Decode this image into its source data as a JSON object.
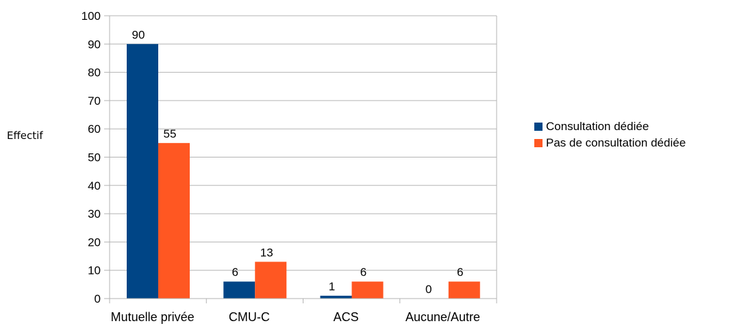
{
  "chart_data": {
    "type": "bar",
    "title": "",
    "xlabel": "",
    "ylabel": "Effectif",
    "ylim": [
      0,
      100
    ],
    "yticks": [
      0,
      10,
      20,
      30,
      40,
      50,
      60,
      70,
      80,
      90,
      100
    ],
    "grid": true,
    "legend_position": "right",
    "categories": [
      "Mutuelle privée",
      "CMU-C",
      "ACS",
      "Aucune/Autre"
    ],
    "series": [
      {
        "name": "Consultation dédiée",
        "color": "#004586",
        "values": [
          90,
          6,
          1,
          0
        ]
      },
      {
        "name": "Pas de consultation dédiée",
        "color": "#ff5722",
        "values": [
          55,
          13,
          6,
          6
        ]
      }
    ]
  }
}
